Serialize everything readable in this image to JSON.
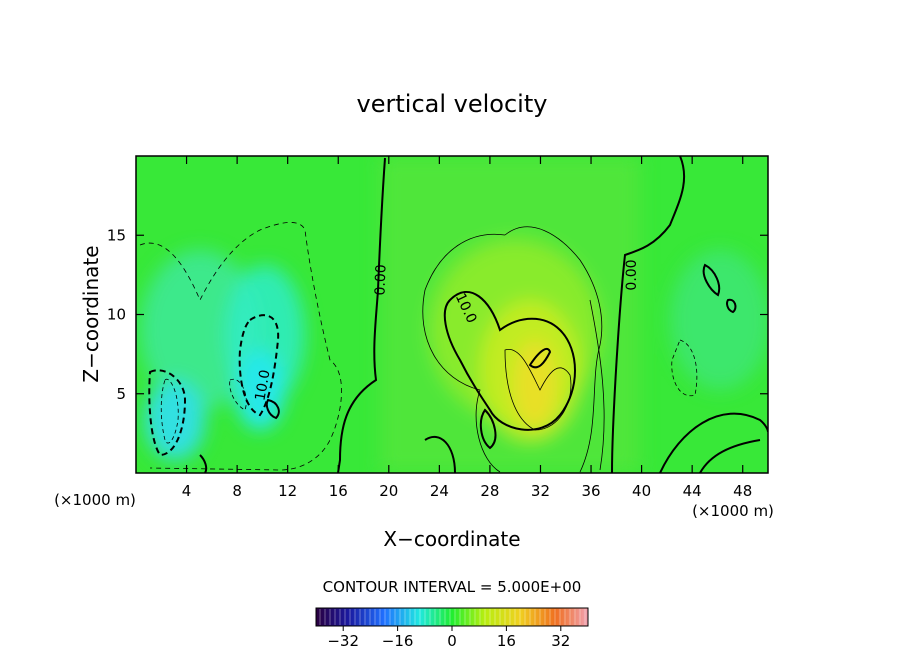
{
  "chart_data": {
    "type": "heatmap",
    "title": "vertical velocity",
    "xlabel": "X−coordinate",
    "ylabel": "Z−coordinate",
    "x_unit_left": "(×1000 m)",
    "x_unit_right": "(×1000 m)",
    "xlim": [
      0,
      50
    ],
    "ylim": [
      0,
      20
    ],
    "x_ticks": [
      4,
      8,
      12,
      16,
      20,
      24,
      28,
      32,
      36,
      40,
      44,
      48
    ],
    "y_ticks": [
      5,
      10,
      15
    ],
    "contour_interval_text": "CONTOUR INTERVAL = 5.000E+00",
    "contour_labels": [
      {
        "text": "0.00",
        "x": 19.1,
        "y": 12.5
      },
      {
        "text": "10.0",
        "x": 10.5,
        "y": 5.6
      },
      {
        "text": "10.0",
        "x": 25.8,
        "y": 10.6
      },
      {
        "text": "0.00",
        "x": 39.5,
        "y": 12.7
      }
    ],
    "colorbar": {
      "range": [
        -40,
        40
      ],
      "ticks": [
        -32,
        -16,
        0,
        16,
        32
      ],
      "tick_labels": [
        "−32",
        "−16",
        "0",
        "16",
        "32"
      ]
    },
    "grid": false,
    "legend": "none"
  }
}
